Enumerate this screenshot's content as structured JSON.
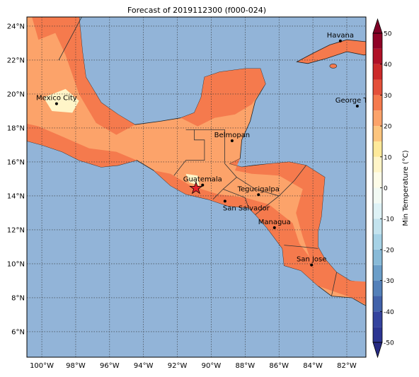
{
  "title": "Forecast of 2019112300 (f000-024)",
  "map": {
    "lon_ticks": [
      {
        "value": -100,
        "label": "100°W"
      },
      {
        "value": -98,
        "label": "98°W"
      },
      {
        "value": -96,
        "label": "96°W"
      },
      {
        "value": -94,
        "label": "94°W"
      },
      {
        "value": -92,
        "label": "92°W"
      },
      {
        "value": -90,
        "label": "90°W"
      },
      {
        "value": -88,
        "label": "88°W"
      },
      {
        "value": -86,
        "label": "86°W"
      },
      {
        "value": -84,
        "label": "84°W"
      },
      {
        "value": -82,
        "label": "82°W"
      }
    ],
    "lat_ticks": [
      {
        "value": 6,
        "label": "6°N"
      },
      {
        "value": 8,
        "label": "8°N"
      },
      {
        "value": 10,
        "label": "10°N"
      },
      {
        "value": 12,
        "label": "12°N"
      },
      {
        "value": 14,
        "label": "14°N"
      },
      {
        "value": 16,
        "label": "16°N"
      },
      {
        "value": 18,
        "label": "18°N"
      },
      {
        "value": 20,
        "label": "20°N"
      },
      {
        "value": 22,
        "label": "22°N"
      },
      {
        "value": 24,
        "label": "24°N"
      }
    ],
    "cities": [
      "Mexico City",
      "Belmopan",
      "Guatemala",
      "San Salvador",
      "Tegucigalpa",
      "Managua",
      "San Jose",
      "Havana",
      "George Tov"
    ]
  },
  "colorbar": {
    "label": "Min Temperature (°C)",
    "lim": [
      -50,
      50
    ],
    "ticks": [
      -50,
      -40,
      -30,
      -20,
      -10,
      0,
      10,
      20,
      30,
      40,
      50
    ],
    "colors": [
      "#2c3592",
      "#34439e",
      "#4262aa",
      "#5380b9",
      "#6b9ec9",
      "#88bad8",
      "#a6d2e6",
      "#c3e3ee",
      "#def2f6",
      "#f2faf4",
      "#fdfce8",
      "#fff5c8",
      "#fee99a",
      "#fdc57e",
      "#fca36a",
      "#f57a4d",
      "#e4503a",
      "#cc2a2a",
      "#b01127",
      "#8f0226"
    ]
  }
}
